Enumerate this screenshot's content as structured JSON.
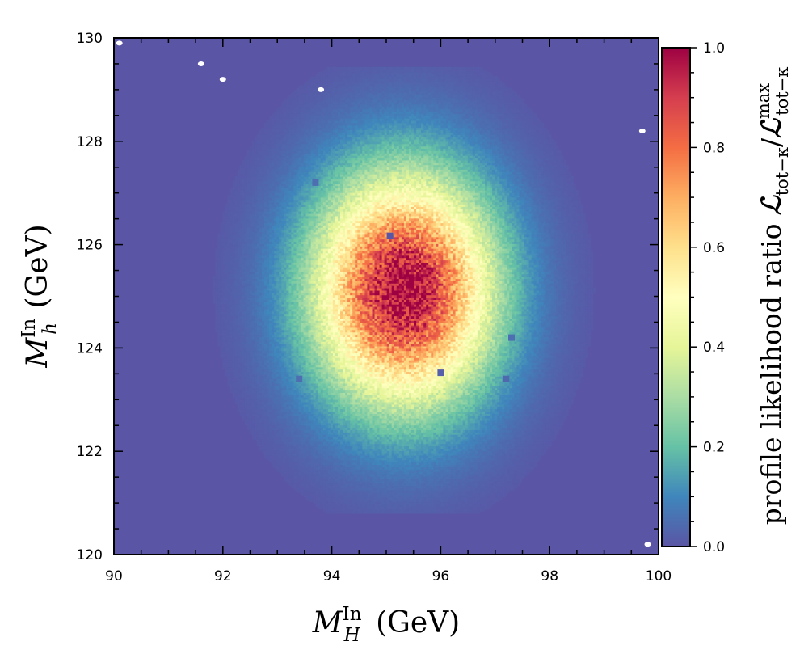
{
  "chart_data": {
    "type": "heatmap",
    "title": "",
    "xlabel": {
      "base": "M",
      "sup": "In",
      "sub": "H",
      "unit": " (GeV)"
    },
    "ylabel": {
      "base": "M",
      "sup": "In",
      "sub": "h",
      "unit": " (GeV)"
    },
    "colorbar_label": {
      "text": "profile likelihood ratio ",
      "num": "ℒ",
      "num_sub": "tot−κ",
      "slash": "/",
      "den": "ℒ",
      "den_sub": "tot−κ",
      "den_sup": "max"
    },
    "xlim": [
      90,
      100
    ],
    "ylim": [
      120,
      130
    ],
    "clim": [
      0.0,
      1.0
    ],
    "xticks": [
      "90",
      "92",
      "94",
      "96",
      "98",
      "100"
    ],
    "yticks": [
      "120",
      "122",
      "124",
      "126",
      "128",
      "130"
    ],
    "cticks": [
      "0.0",
      "0.2",
      "0.4",
      "0.6",
      "0.8",
      "1.0"
    ],
    "colormap": "Spectral_r",
    "peak": {
      "x": 95.3,
      "y": 125.1,
      "value": 1.0
    },
    "spread": {
      "sigma_x": 1.15,
      "sigma_y": 1.55
    },
    "background_value": 0.0,
    "outlier_cells": [
      {
        "x": 95.07,
        "y": 126.17,
        "value": 0.0
      },
      {
        "x": 96.0,
        "y": 123.52,
        "value": 0.02
      },
      {
        "x": 93.4,
        "y": 123.4,
        "value": 0.05
      },
      {
        "x": 97.2,
        "y": 123.4,
        "value": 0.04
      },
      {
        "x": 93.7,
        "y": 127.2,
        "value": 0.05
      },
      {
        "x": 97.3,
        "y": 124.2,
        "value": 0.05
      }
    ],
    "empty_regions": [
      {
        "x": 91.6,
        "y": 129.5
      },
      {
        "x": 92.0,
        "y": 129.2
      },
      {
        "x": 93.8,
        "y": 129.0
      },
      {
        "x": 99.7,
        "y": 128.2
      },
      {
        "x": 90.1,
        "y": 129.9
      },
      {
        "x": 99.8,
        "y": 120.2
      }
    ],
    "grid": false
  }
}
